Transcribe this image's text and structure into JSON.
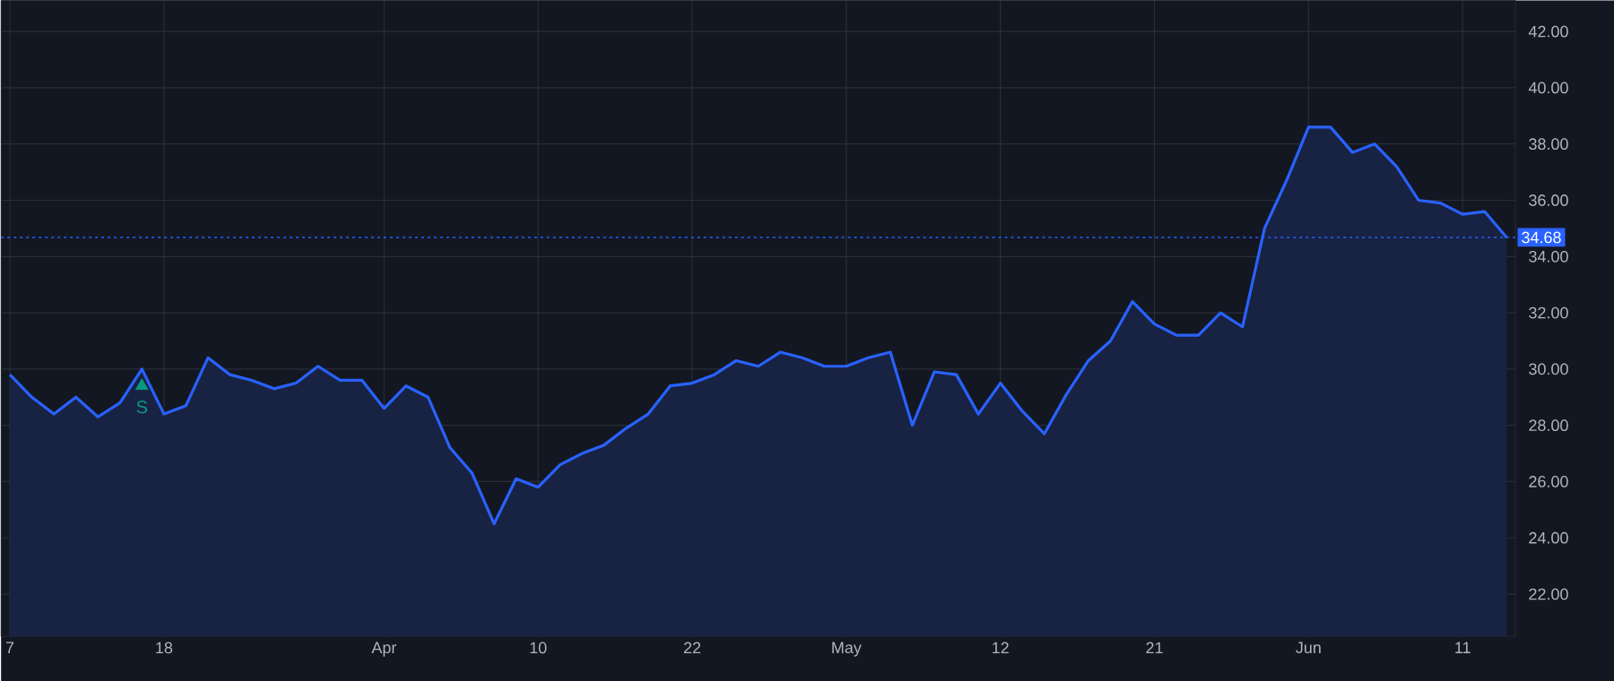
{
  "chart_data": {
    "type": "area",
    "categories": [
      "7",
      null,
      null,
      null,
      null,
      null,
      null,
      "18",
      null,
      null,
      null,
      null,
      null,
      null,
      null,
      null,
      null,
      "Apr",
      null,
      null,
      null,
      null,
      null,
      null,
      "10",
      null,
      null,
      null,
      null,
      null,
      null,
      "22",
      null,
      null,
      null,
      null,
      null,
      null,
      "May",
      null,
      null,
      null,
      null,
      null,
      null,
      "12",
      null,
      null,
      null,
      null,
      null,
      null,
      "21",
      null,
      null,
      null,
      null,
      null,
      null,
      "Jun",
      null,
      null,
      null,
      null,
      null,
      null,
      "11",
      null,
      null
    ],
    "series": [
      {
        "color": "#2962ff",
        "values": [
          29.8,
          29.0,
          28.4,
          29.0,
          28.3,
          28.8,
          30.0,
          28.4,
          28.7,
          30.4,
          29.8,
          29.6,
          29.3,
          29.5,
          30.1,
          29.6,
          29.6,
          28.6,
          29.4,
          29.0,
          27.2,
          26.3,
          24.5,
          26.1,
          25.8,
          26.6,
          27.0,
          27.3,
          27.9,
          28.4,
          29.4,
          29.5,
          29.8,
          30.3,
          30.1,
          30.6,
          30.4,
          30.1,
          30.1,
          30.4,
          30.6,
          28.0,
          29.9,
          29.8,
          28.4,
          29.5,
          28.5,
          27.7,
          29.1,
          30.3,
          31.0,
          32.4,
          31.6,
          31.2,
          31.2,
          32.0,
          31.5,
          35.0,
          36.7,
          38.6,
          38.6,
          37.7,
          38.0,
          37.2,
          36.0,
          35.9,
          35.5,
          35.6,
          34.68
        ]
      },
      {
        "type": "scatter",
        "name": "S",
        "color": "#089981",
        "marker": "triangle",
        "values": [
          null,
          null,
          null,
          null,
          null,
          null,
          29.4,
          null,
          null,
          null,
          null,
          null,
          null,
          null,
          null,
          null,
          null,
          null,
          null,
          null,
          null,
          null,
          null,
          null,
          null,
          null,
          null,
          null,
          null,
          null,
          null,
          null,
          null,
          null,
          null,
          null,
          null,
          null,
          null,
          null,
          null,
          null,
          null,
          null,
          null,
          null,
          null,
          null,
          null,
          null,
          null,
          null,
          null,
          null,
          null,
          null,
          null,
          null,
          null,
          null,
          null,
          null,
          null,
          null,
          null,
          null,
          null,
          null,
          null
        ]
      }
    ],
    "ylim": [
      20.5,
      43.1
    ],
    "yticks": [
      {
        "value": 22,
        "label": "22.00"
      },
      {
        "value": 24,
        "label": "24.00"
      },
      {
        "value": 26,
        "label": "26.00"
      },
      {
        "value": 28,
        "label": "28.00"
      },
      {
        "value": 30,
        "label": "30.00"
      },
      {
        "value": 32,
        "label": "32.00"
      },
      {
        "value": 34,
        "label": "34.00"
      },
      {
        "value": 36,
        "label": "36.00"
      },
      {
        "value": 38,
        "label": "38.00"
      },
      {
        "value": 40,
        "label": "40.00"
      },
      {
        "value": 42,
        "label": "42.00"
      }
    ],
    "grid": true,
    "ref_lines": [
      {
        "axis": "y",
        "value": 34.68,
        "label": "34.68",
        "color": "#2962ff",
        "line_style": "dotted"
      }
    ]
  }
}
